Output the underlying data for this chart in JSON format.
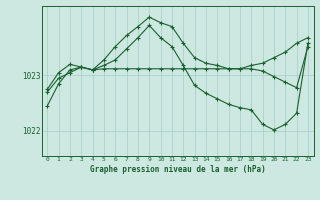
{
  "title": "Graphe pression niveau de la mer (hPa)",
  "background_color": "#cce8e0",
  "plot_bg_color": "#cce8e0",
  "grid_color": "#a8ccc8",
  "line_color": "#1a6030",
  "ylim": [
    1021.55,
    1024.25
  ],
  "xlim": [
    -0.5,
    23.5
  ],
  "yticks": [
    1022,
    1023
  ],
  "xticks": [
    0,
    1,
    2,
    3,
    4,
    5,
    6,
    7,
    8,
    9,
    10,
    11,
    12,
    13,
    14,
    15,
    16,
    17,
    18,
    19,
    20,
    21,
    22,
    23
  ],
  "series": [
    [
      1022.75,
      1023.05,
      1023.2,
      1023.15,
      1023.1,
      1023.28,
      1023.52,
      1023.72,
      1023.88,
      1024.05,
      1023.95,
      1023.88,
      1023.58,
      1023.32,
      1023.22,
      1023.18,
      1023.12,
      1023.12,
      1023.18,
      1023.22,
      1023.32,
      1023.42,
      1023.58,
      1023.68
    ],
    [
      1022.45,
      1022.85,
      1023.1,
      1023.15,
      1023.1,
      1023.18,
      1023.28,
      1023.48,
      1023.68,
      1023.9,
      1023.68,
      1023.52,
      1023.18,
      1022.82,
      1022.68,
      1022.58,
      1022.48,
      1022.42,
      1022.38,
      1022.12,
      1022.02,
      1022.12,
      1022.32,
      1023.58
    ],
    [
      1022.7,
      1022.95,
      1023.05,
      1023.15,
      1023.1,
      1023.12,
      1023.12,
      1023.12,
      1023.12,
      1023.12,
      1023.12,
      1023.12,
      1023.12,
      1023.12,
      1023.12,
      1023.12,
      1023.12,
      1023.12,
      1023.12,
      1023.08,
      1022.98,
      1022.88,
      1022.78,
      1023.52
    ]
  ]
}
